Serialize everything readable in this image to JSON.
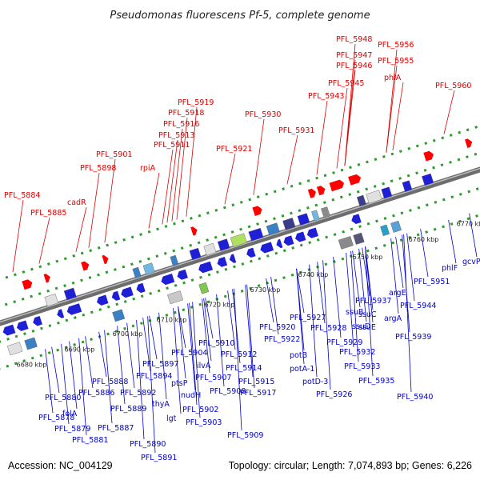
{
  "title": "Pseudomonas fluorescens Pf-5, complete genome",
  "footer": {
    "accession": "Accession: NC_004129",
    "summary": "Topology: circular; Length: 7,074,893 bp; Genes: 6,226"
  },
  "kbp_labels": [
    "6680 kbp",
    "6690 kbp",
    "6700 kbp",
    "6710 kbp",
    "6720 kbp",
    "6730 kbp",
    "6740 kbp",
    "6750 kbp",
    "6760 kbp",
    "6770 kbp"
  ],
  "top_labels": [
    "PFL_5884",
    "PFL_5885",
    "cadR",
    "PFL_5898",
    "PFL_5901",
    "rpiA",
    "PFL_5911",
    "PFL_5913",
    "PFL_5916",
    "PFL_5918",
    "PFL_5919",
    "PFL_5921",
    "PFL_5930",
    "PFL_5931",
    "PFL_5943",
    "PFL_5945",
    "PFL_5946",
    "PFL_5947",
    "PFL_5948",
    "phlA",
    "PFL_5955",
    "PFL_5956",
    "PFL_5960"
  ],
  "bottom_labels": [
    "PFL_5880",
    "PFL_5878",
    "PFL_5879",
    "PFL_5881",
    "folA",
    "PFL_5888",
    "PFL_5886",
    "PFL_5887",
    "PFL_5889",
    "PFL_5890",
    "PFL_5891",
    "PFL_5892",
    "PFL_5894",
    "PFL_5897",
    "thyA",
    "lgt",
    "ptsP",
    "nudH",
    "PFL_5902",
    "PFL_5903",
    "PFL_5904",
    "ilvA",
    "PFL_5907",
    "PFL_5908",
    "PFL_5909",
    "PFL_5910",
    "PFL_5912",
    "PFL_5914",
    "PFL_5915",
    "PFL_5917",
    "PFL_5920",
    "PFL_5922",
    "potB",
    "PFL_5927",
    "potA-1",
    "potD-3",
    "PFL_5926",
    "PFL_5928",
    "PFL_5929",
    "ssuB",
    "ssuC",
    "PFL_5937",
    "PFL_5932",
    "PFL_5933",
    "ssuE",
    "ssuD",
    "PFL_5935",
    "argE",
    "argA",
    "PFL_5939",
    "PFL_5944",
    "PFL_5940",
    "PFL_5951",
    "phlF",
    "gcvP"
  ]
}
